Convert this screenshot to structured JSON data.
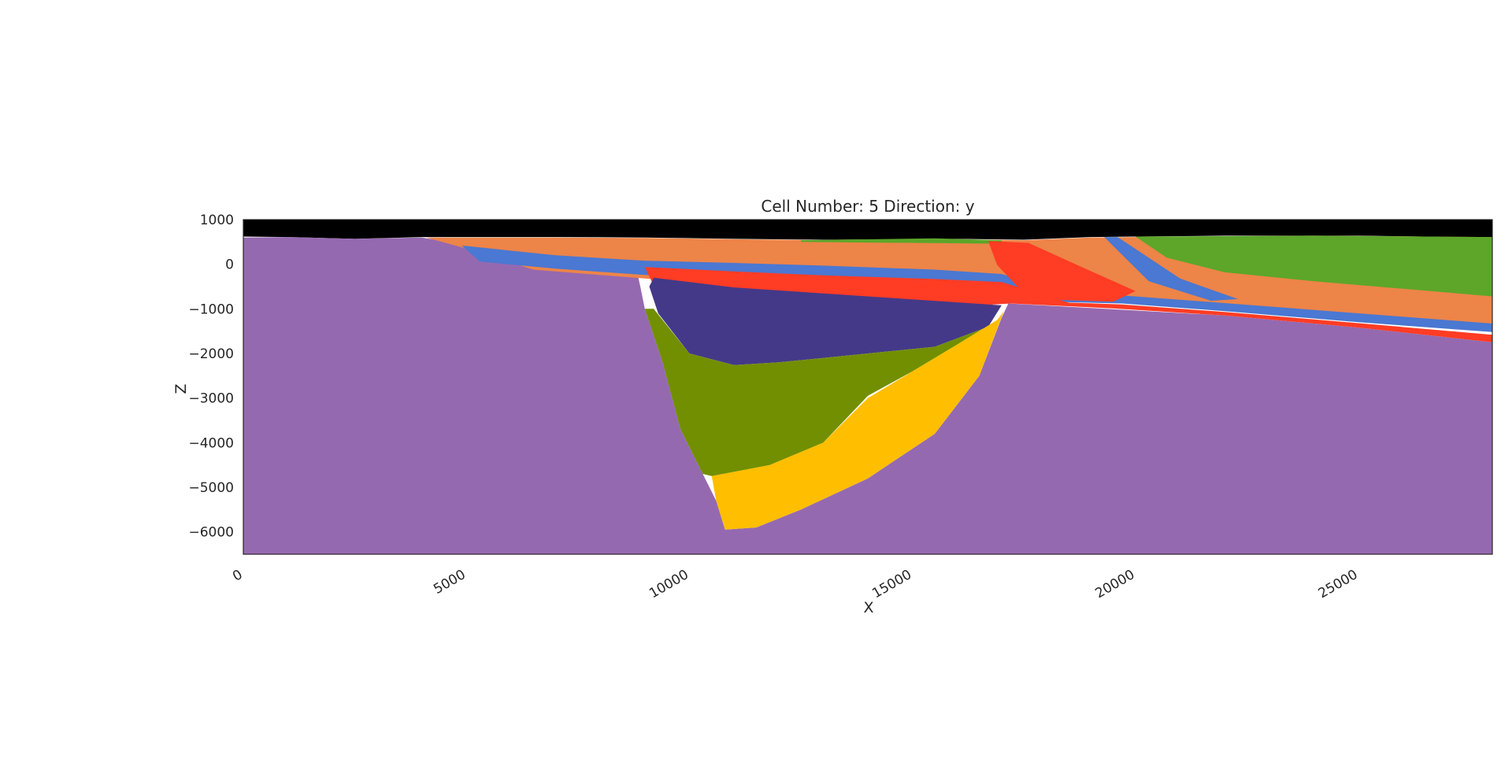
{
  "chart_data": {
    "type": "heatmap",
    "title": "Cell Number: 5 Direction: y",
    "xlabel": "X",
    "ylabel": "Z",
    "xlim": [
      0,
      28000
    ],
    "ylim": [
      -6500,
      1000
    ],
    "x_ticks": [
      0,
      5000,
      10000,
      15000,
      20000,
      25000
    ],
    "x_tick_labels": [
      "0",
      "5000",
      "10000",
      "15000",
      "20000",
      "25000"
    ],
    "y_ticks": [
      1000,
      0,
      -1000,
      -2000,
      -3000,
      -4000,
      -5000,
      -6000
    ],
    "y_tick_labels": [
      "1000",
      "0",
      "−1000",
      "−2000",
      "−3000",
      "−4000",
      "−5000",
      "−6000"
    ],
    "grid": false,
    "colors": {
      "air": "#000000",
      "basement": "#9569b0",
      "orange": "#ed8448",
      "blue": "#4a78d2",
      "red": "#ff3c24",
      "navy": "#443988",
      "olive": "#728f02",
      "yellow": "#ffbe00",
      "green": "#5da629"
    },
    "units": [
      {
        "name": "air",
        "color": "#000000",
        "polygon": [
          [
            0,
            1000
          ],
          [
            28000,
            1000
          ],
          [
            28000,
            600
          ],
          [
            25000,
            640
          ],
          [
            22000,
            640
          ],
          [
            20000,
            620
          ],
          [
            19000,
            610
          ],
          [
            17500,
            550
          ],
          [
            16000,
            570
          ],
          [
            13000,
            550
          ],
          [
            11000,
            570
          ],
          [
            9000,
            600
          ],
          [
            7000,
            610
          ],
          [
            4000,
            610
          ],
          [
            2500,
            570
          ],
          [
            1000,
            610
          ],
          [
            0,
            620
          ]
        ]
      },
      {
        "name": "basement",
        "color": "#9569b0",
        "polygon": [
          [
            0,
            600
          ],
          [
            1000,
            610
          ],
          [
            2500,
            570
          ],
          [
            4000,
            600
          ],
          [
            5000,
            440
          ],
          [
            6000,
            10
          ],
          [
            7000,
            -20
          ],
          [
            8000,
            -50
          ],
          [
            8800,
            -50
          ],
          [
            8900,
            -500
          ],
          [
            9000,
            -1000
          ],
          [
            9400,
            -2200
          ],
          [
            9800,
            -3700
          ],
          [
            10300,
            -4700
          ],
          [
            10600,
            -5300
          ],
          [
            10800,
            -5950
          ],
          [
            11500,
            -5900
          ],
          [
            12500,
            -5500
          ],
          [
            14000,
            -4800
          ],
          [
            15500,
            -3800
          ],
          [
            16500,
            -2500
          ],
          [
            17000,
            -1200
          ],
          [
            17150,
            -880
          ],
          [
            19000,
            -980
          ],
          [
            22000,
            -1150
          ],
          [
            25000,
            -1420
          ],
          [
            28000,
            -1750
          ],
          [
            28000,
            -6500
          ],
          [
            0,
            -6500
          ]
        ]
      },
      {
        "name": "orange",
        "color": "#ed8448",
        "polygon": [
          [
            4100,
            600
          ],
          [
            7000,
            600
          ],
          [
            9000,
            590
          ],
          [
            11000,
            560
          ],
          [
            13000,
            540
          ],
          [
            16000,
            555
          ],
          [
            17500,
            540
          ],
          [
            19000,
            600
          ],
          [
            21000,
            620
          ],
          [
            24000,
            640
          ],
          [
            28000,
            610
          ],
          [
            28000,
            -1400
          ],
          [
            25000,
            -1150
          ],
          [
            22000,
            -900
          ],
          [
            19500,
            -780
          ],
          [
            17200,
            -790
          ],
          [
            16000,
            -640
          ],
          [
            13000,
            -560
          ],
          [
            9000,
            -320
          ],
          [
            6500,
            -120
          ],
          [
            5000,
            350
          ]
        ]
      },
      {
        "name": "green",
        "color": "#5da629",
        "polygon": [
          [
            20000,
            620
          ],
          [
            24000,
            640
          ],
          [
            28000,
            610
          ],
          [
            28000,
            -720
          ],
          [
            26000,
            -550
          ],
          [
            24000,
            -380
          ],
          [
            22000,
            -180
          ],
          [
            20700,
            150
          ]
        ]
      },
      {
        "name": "green-thin",
        "color": "#5da629",
        "polygon": [
          [
            12500,
            540
          ],
          [
            15500,
            580
          ],
          [
            17000,
            540
          ],
          [
            17000,
            460
          ],
          [
            12500,
            500
          ]
        ]
      },
      {
        "name": "blue",
        "color": "#4a78d2",
        "polygon": [
          [
            4900,
            420
          ],
          [
            7000,
            200
          ],
          [
            9000,
            80
          ],
          [
            11000,
            30
          ],
          [
            13000,
            -30
          ],
          [
            15500,
            -120
          ],
          [
            17000,
            -220
          ],
          [
            18500,
            -620
          ],
          [
            19700,
            -700
          ],
          [
            22000,
            -870
          ],
          [
            25000,
            -1100
          ],
          [
            28000,
            -1330
          ],
          [
            28000,
            -1520
          ],
          [
            25000,
            -1300
          ],
          [
            22000,
            -1050
          ],
          [
            19700,
            -880
          ],
          [
            17200,
            -820
          ],
          [
            16000,
            -520
          ],
          [
            13500,
            -430
          ],
          [
            11000,
            -330
          ],
          [
            9000,
            -240
          ],
          [
            7000,
            -100
          ],
          [
            5300,
            60
          ]
        ]
      },
      {
        "name": "blue-steep",
        "color": "#4a78d2",
        "polygon": [
          [
            19300,
            610
          ],
          [
            19600,
            610
          ],
          [
            21000,
            -320
          ],
          [
            22300,
            -780
          ],
          [
            21700,
            -820
          ],
          [
            20300,
            -380
          ]
        ]
      },
      {
        "name": "red",
        "color": "#ff3c24",
        "polygon": [
          [
            9000,
            -60
          ],
          [
            11000,
            -160
          ],
          [
            13000,
            -250
          ],
          [
            15500,
            -330
          ],
          [
            17000,
            -400
          ],
          [
            18500,
            -860
          ],
          [
            19700,
            -900
          ],
          [
            22000,
            -1070
          ],
          [
            25000,
            -1320
          ],
          [
            28000,
            -1580
          ],
          [
            28000,
            -1750
          ],
          [
            25000,
            -1420
          ],
          [
            22000,
            -1150
          ],
          [
            19500,
            -990
          ],
          [
            17200,
            -880
          ],
          [
            16500,
            -920
          ],
          [
            14000,
            -760
          ],
          [
            11000,
            -620
          ],
          [
            9200,
            -480
          ]
        ]
      },
      {
        "name": "red-wedge",
        "color": "#ff3c24",
        "polygon": [
          [
            16700,
            520
          ],
          [
            17600,
            480
          ],
          [
            18700,
            -20
          ],
          [
            20000,
            -600
          ],
          [
            19500,
            -840
          ],
          [
            18300,
            -800
          ],
          [
            17400,
            -550
          ],
          [
            16900,
            -20
          ]
        ]
      },
      {
        "name": "navy",
        "color": "#443988",
        "polygon": [
          [
            9200,
            -300
          ],
          [
            11000,
            -520
          ],
          [
            14000,
            -720
          ],
          [
            17000,
            -920
          ],
          [
            16700,
            -1400
          ],
          [
            15500,
            -1850
          ],
          [
            14000,
            -2000
          ],
          [
            12000,
            -2200
          ],
          [
            11000,
            -2260
          ],
          [
            10000,
            -2000
          ],
          [
            9300,
            -1100
          ],
          [
            9100,
            -500
          ]
        ]
      },
      {
        "name": "olive",
        "color": "#728f02",
        "polygon": [
          [
            9000,
            -1000
          ],
          [
            9200,
            -1000
          ],
          [
            10000,
            -2000
          ],
          [
            11000,
            -2260
          ],
          [
            12000,
            -2200
          ],
          [
            14000,
            -2000
          ],
          [
            15500,
            -1850
          ],
          [
            16700,
            -1400
          ],
          [
            16900,
            -1250
          ],
          [
            16000,
            -1800
          ],
          [
            15000,
            -2400
          ],
          [
            14000,
            -2950
          ],
          [
            13000,
            -4000
          ],
          [
            11800,
            -4500
          ],
          [
            10500,
            -4750
          ],
          [
            10300,
            -4700
          ],
          [
            9800,
            -3700
          ],
          [
            9400,
            -2200
          ]
        ]
      },
      {
        "name": "yellow",
        "color": "#ffbe00",
        "polygon": [
          [
            16900,
            -1250
          ],
          [
            17050,
            -1050
          ],
          [
            16500,
            -2500
          ],
          [
            15500,
            -3800
          ],
          [
            14000,
            -4800
          ],
          [
            12500,
            -5500
          ],
          [
            11500,
            -5900
          ],
          [
            10800,
            -5950
          ],
          [
            10600,
            -5300
          ],
          [
            10500,
            -4750
          ],
          [
            11800,
            -4500
          ],
          [
            13000,
            -4000
          ],
          [
            14000,
            -3000
          ],
          [
            15000,
            -2400
          ],
          [
            16000,
            -1800
          ]
        ]
      }
    ]
  }
}
